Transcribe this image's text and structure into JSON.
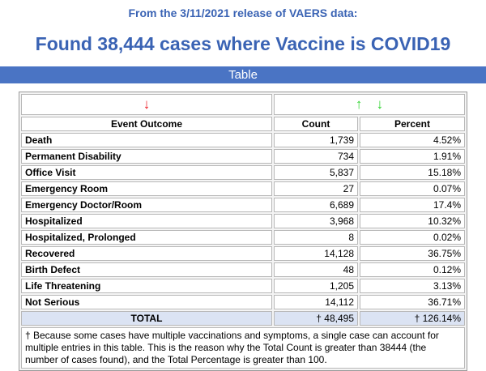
{
  "header": {
    "subtitle": "From the 3/11/2021 release of VAERS data:",
    "title": "Found 38,444 cases where Vaccine is COVID19",
    "section_bar_label": "Table"
  },
  "colors": {
    "accent_blue": "#3a63b4",
    "bar_blue": "#4a74c4",
    "total_row_bg": "#dbe3f3",
    "sort_red": "#ee1c25",
    "sort_green": "#2fd32f"
  },
  "table": {
    "sort_icons": {
      "outcome_descending": "↓",
      "metrics_ascending": "↑",
      "metrics_descending": "↓"
    },
    "columns": {
      "outcome": "Event Outcome",
      "count": "Count",
      "percent": "Percent"
    },
    "rows": [
      {
        "label": "Death",
        "count": "1,739",
        "percent": "4.52%"
      },
      {
        "label": "Permanent Disability",
        "count": "734",
        "percent": "1.91%"
      },
      {
        "label": "Office Visit",
        "count": "5,837",
        "percent": "15.18%"
      },
      {
        "label": "Emergency Room",
        "count": "27",
        "percent": "0.07%"
      },
      {
        "label": "Emergency Doctor/Room",
        "count": "6,689",
        "percent": "17.4%"
      },
      {
        "label": "Hospitalized",
        "count": "3,968",
        "percent": "10.32%"
      },
      {
        "label": "Hospitalized, Prolonged",
        "count": "8",
        "percent": "0.02%"
      },
      {
        "label": "Recovered",
        "count": "14,128",
        "percent": "36.75%"
      },
      {
        "label": "Birth Defect",
        "count": "48",
        "percent": "0.12%"
      },
      {
        "label": "Life Threatening",
        "count": "1,205",
        "percent": "3.13%"
      },
      {
        "label": "Not Serious",
        "count": "14,112",
        "percent": "36.71%"
      }
    ],
    "total": {
      "label": "TOTAL",
      "count": "† 48,495",
      "percent": "† 126.14%"
    },
    "footnote": "† Because some cases have multiple vaccinations and symptoms, a single case can account for multiple entries in this table. This is the reason why the Total Count is greater than 38444 (the number of cases found), and the Total Percentage is greater than 100."
  }
}
